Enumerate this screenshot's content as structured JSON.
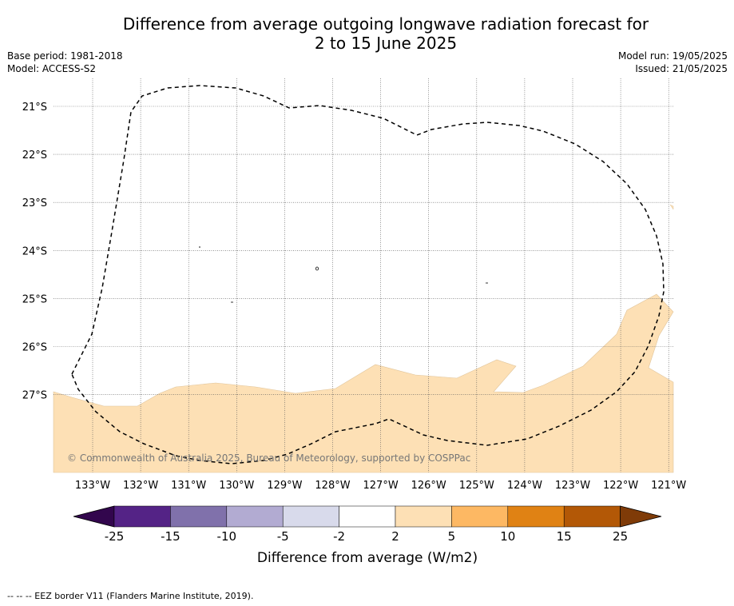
{
  "title": {
    "line1": "Difference from average outgoing longwave radiation forecast for",
    "line2": "2 to 15 June 2025"
  },
  "meta_left": {
    "base_period": "Base period: 1981-2018",
    "model": "Model: ACCESS-S2"
  },
  "meta_right": {
    "model_run": "Model run: 19/05/2025",
    "issued": "Issued: 21/05/2025"
  },
  "map": {
    "latitude_labels": [
      "21°S",
      "22°S",
      "23°S",
      "24°S",
      "25°S",
      "26°S",
      "27°S"
    ],
    "longitude_labels": [
      "133°W",
      "132°W",
      "131°W",
      "130°W",
      "129°W",
      "128°W",
      "127°W",
      "126°W",
      "125°W",
      "124°W",
      "123°W",
      "122°W",
      "121°W"
    ],
    "copyright": "© Commonwealth of Australia 2025, Bureau of Meteorology, supported by COSPPac",
    "anomaly_fill_color": "#fde0b5"
  },
  "colorbar": {
    "ticks": [
      "-25",
      "-15",
      "-10",
      "-5",
      "-2",
      "2",
      "5",
      "10",
      "15",
      "25"
    ],
    "colors": [
      "#32064d",
      "#542386",
      "#8071ab",
      "#b2abd2",
      "#d8daeb",
      "#ffffff",
      "#fde0b5",
      "#fdb863",
      "#e08214",
      "#b35806",
      "#7f3b08"
    ],
    "label": "Difference from average (W/m2)"
  },
  "footnote": "--  --  -- EEZ border V11 (Flanders Marine Institute, 2019)."
}
